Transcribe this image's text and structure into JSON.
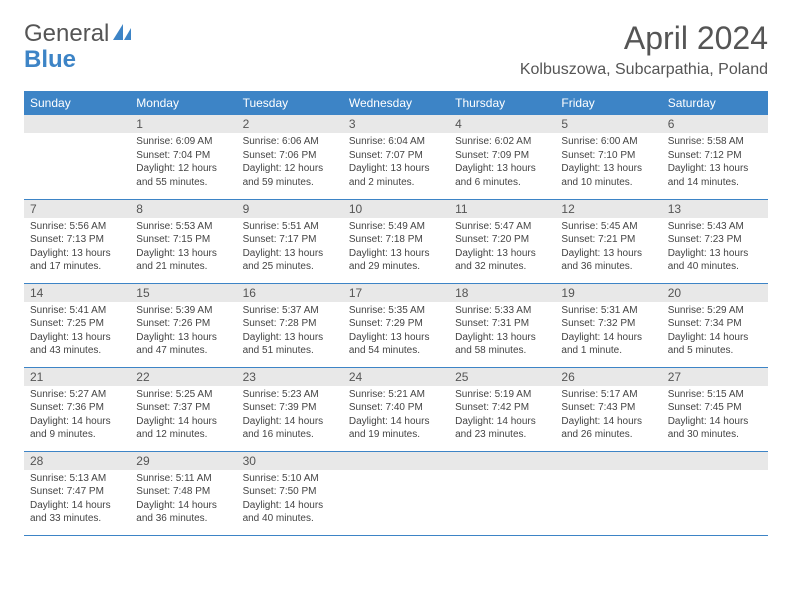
{
  "logo": {
    "word1": "General",
    "word2": "Blue"
  },
  "header": {
    "month": "April 2024",
    "location": "Kolbuszowa, Subcarpathia, Poland"
  },
  "colors": {
    "header_bar": "#3d84c6",
    "daynum_bg": "#e8e8e8",
    "rule": "#3d84c6",
    "text": "#444444",
    "logo_gray": "#555555",
    "logo_blue": "#3d84c6"
  },
  "weekdays": [
    "Sunday",
    "Monday",
    "Tuesday",
    "Wednesday",
    "Thursday",
    "Friday",
    "Saturday"
  ],
  "weeks": [
    [
      null,
      {
        "n": "1",
        "sr": "Sunrise: 6:09 AM",
        "ss": "Sunset: 7:04 PM",
        "d1": "Daylight: 12 hours",
        "d2": "and 55 minutes."
      },
      {
        "n": "2",
        "sr": "Sunrise: 6:06 AM",
        "ss": "Sunset: 7:06 PM",
        "d1": "Daylight: 12 hours",
        "d2": "and 59 minutes."
      },
      {
        "n": "3",
        "sr": "Sunrise: 6:04 AM",
        "ss": "Sunset: 7:07 PM",
        "d1": "Daylight: 13 hours",
        "d2": "and 2 minutes."
      },
      {
        "n": "4",
        "sr": "Sunrise: 6:02 AM",
        "ss": "Sunset: 7:09 PM",
        "d1": "Daylight: 13 hours",
        "d2": "and 6 minutes."
      },
      {
        "n": "5",
        "sr": "Sunrise: 6:00 AM",
        "ss": "Sunset: 7:10 PM",
        "d1": "Daylight: 13 hours",
        "d2": "and 10 minutes."
      },
      {
        "n": "6",
        "sr": "Sunrise: 5:58 AM",
        "ss": "Sunset: 7:12 PM",
        "d1": "Daylight: 13 hours",
        "d2": "and 14 minutes."
      }
    ],
    [
      {
        "n": "7",
        "sr": "Sunrise: 5:56 AM",
        "ss": "Sunset: 7:13 PM",
        "d1": "Daylight: 13 hours",
        "d2": "and 17 minutes."
      },
      {
        "n": "8",
        "sr": "Sunrise: 5:53 AM",
        "ss": "Sunset: 7:15 PM",
        "d1": "Daylight: 13 hours",
        "d2": "and 21 minutes."
      },
      {
        "n": "9",
        "sr": "Sunrise: 5:51 AM",
        "ss": "Sunset: 7:17 PM",
        "d1": "Daylight: 13 hours",
        "d2": "and 25 minutes."
      },
      {
        "n": "10",
        "sr": "Sunrise: 5:49 AM",
        "ss": "Sunset: 7:18 PM",
        "d1": "Daylight: 13 hours",
        "d2": "and 29 minutes."
      },
      {
        "n": "11",
        "sr": "Sunrise: 5:47 AM",
        "ss": "Sunset: 7:20 PM",
        "d1": "Daylight: 13 hours",
        "d2": "and 32 minutes."
      },
      {
        "n": "12",
        "sr": "Sunrise: 5:45 AM",
        "ss": "Sunset: 7:21 PM",
        "d1": "Daylight: 13 hours",
        "d2": "and 36 minutes."
      },
      {
        "n": "13",
        "sr": "Sunrise: 5:43 AM",
        "ss": "Sunset: 7:23 PM",
        "d1": "Daylight: 13 hours",
        "d2": "and 40 minutes."
      }
    ],
    [
      {
        "n": "14",
        "sr": "Sunrise: 5:41 AM",
        "ss": "Sunset: 7:25 PM",
        "d1": "Daylight: 13 hours",
        "d2": "and 43 minutes."
      },
      {
        "n": "15",
        "sr": "Sunrise: 5:39 AM",
        "ss": "Sunset: 7:26 PM",
        "d1": "Daylight: 13 hours",
        "d2": "and 47 minutes."
      },
      {
        "n": "16",
        "sr": "Sunrise: 5:37 AM",
        "ss": "Sunset: 7:28 PM",
        "d1": "Daylight: 13 hours",
        "d2": "and 51 minutes."
      },
      {
        "n": "17",
        "sr": "Sunrise: 5:35 AM",
        "ss": "Sunset: 7:29 PM",
        "d1": "Daylight: 13 hours",
        "d2": "and 54 minutes."
      },
      {
        "n": "18",
        "sr": "Sunrise: 5:33 AM",
        "ss": "Sunset: 7:31 PM",
        "d1": "Daylight: 13 hours",
        "d2": "and 58 minutes."
      },
      {
        "n": "19",
        "sr": "Sunrise: 5:31 AM",
        "ss": "Sunset: 7:32 PM",
        "d1": "Daylight: 14 hours",
        "d2": "and 1 minute."
      },
      {
        "n": "20",
        "sr": "Sunrise: 5:29 AM",
        "ss": "Sunset: 7:34 PM",
        "d1": "Daylight: 14 hours",
        "d2": "and 5 minutes."
      }
    ],
    [
      {
        "n": "21",
        "sr": "Sunrise: 5:27 AM",
        "ss": "Sunset: 7:36 PM",
        "d1": "Daylight: 14 hours",
        "d2": "and 9 minutes."
      },
      {
        "n": "22",
        "sr": "Sunrise: 5:25 AM",
        "ss": "Sunset: 7:37 PM",
        "d1": "Daylight: 14 hours",
        "d2": "and 12 minutes."
      },
      {
        "n": "23",
        "sr": "Sunrise: 5:23 AM",
        "ss": "Sunset: 7:39 PM",
        "d1": "Daylight: 14 hours",
        "d2": "and 16 minutes."
      },
      {
        "n": "24",
        "sr": "Sunrise: 5:21 AM",
        "ss": "Sunset: 7:40 PM",
        "d1": "Daylight: 14 hours",
        "d2": "and 19 minutes."
      },
      {
        "n": "25",
        "sr": "Sunrise: 5:19 AM",
        "ss": "Sunset: 7:42 PM",
        "d1": "Daylight: 14 hours",
        "d2": "and 23 minutes."
      },
      {
        "n": "26",
        "sr": "Sunrise: 5:17 AM",
        "ss": "Sunset: 7:43 PM",
        "d1": "Daylight: 14 hours",
        "d2": "and 26 minutes."
      },
      {
        "n": "27",
        "sr": "Sunrise: 5:15 AM",
        "ss": "Sunset: 7:45 PM",
        "d1": "Daylight: 14 hours",
        "d2": "and 30 minutes."
      }
    ],
    [
      {
        "n": "28",
        "sr": "Sunrise: 5:13 AM",
        "ss": "Sunset: 7:47 PM",
        "d1": "Daylight: 14 hours",
        "d2": "and 33 minutes."
      },
      {
        "n": "29",
        "sr": "Sunrise: 5:11 AM",
        "ss": "Sunset: 7:48 PM",
        "d1": "Daylight: 14 hours",
        "d2": "and 36 minutes."
      },
      {
        "n": "30",
        "sr": "Sunrise: 5:10 AM",
        "ss": "Sunset: 7:50 PM",
        "d1": "Daylight: 14 hours",
        "d2": "and 40 minutes."
      },
      null,
      null,
      null,
      null
    ]
  ]
}
